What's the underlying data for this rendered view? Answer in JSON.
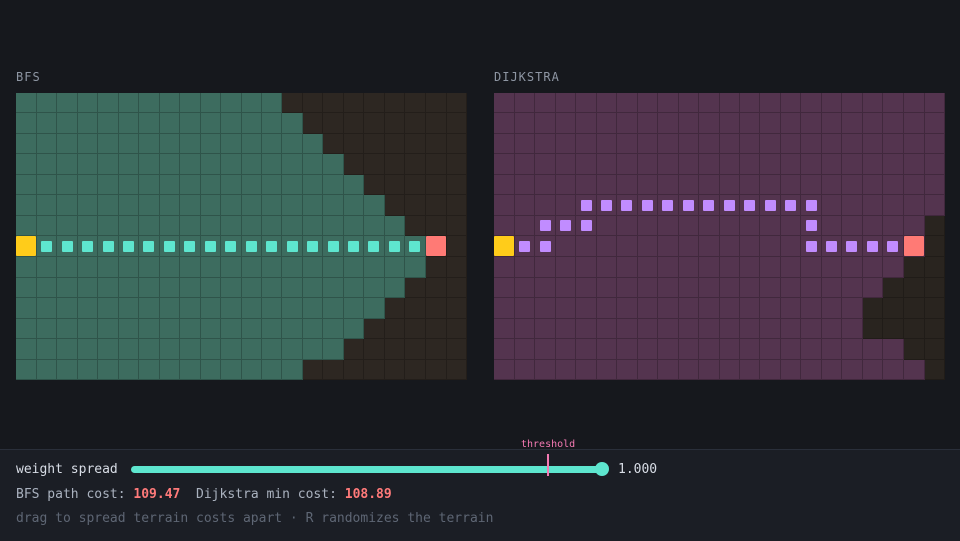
{
  "panels": {
    "left": {
      "title": "BFS"
    },
    "right": {
      "title": "DIJKSTRA"
    }
  },
  "grid": {
    "cols": 22,
    "rows": 14,
    "start": [
      0,
      7
    ],
    "goal": [
      20,
      7
    ]
  },
  "bfs": {
    "region_colors": {
      "explored": "#3d6c5f",
      "unexplored": "#2d2722"
    },
    "explored_end_col_by_row": [
      13,
      14,
      15,
      16,
      17,
      18,
      19,
      20,
      20,
      19,
      18,
      17,
      16,
      14
    ],
    "path": [
      [
        1,
        7
      ],
      [
        2,
        7
      ],
      [
        3,
        7
      ],
      [
        4,
        7
      ],
      [
        5,
        7
      ],
      [
        6,
        7
      ],
      [
        7,
        7
      ],
      [
        8,
        7
      ],
      [
        9,
        7
      ],
      [
        10,
        7
      ],
      [
        11,
        7
      ],
      [
        12,
        7
      ],
      [
        13,
        7
      ],
      [
        14,
        7
      ],
      [
        15,
        7
      ],
      [
        16,
        7
      ],
      [
        17,
        7
      ],
      [
        18,
        7
      ],
      [
        19,
        7
      ]
    ],
    "path_color": "#5ee6cf"
  },
  "dijkstra": {
    "region_colors": {
      "explored": "#54344f",
      "unexplored": "#29241f"
    },
    "unexplored_cells": [
      [
        21,
        6
      ],
      [
        21,
        7
      ],
      [
        20,
        8
      ],
      [
        21,
        8
      ],
      [
        19,
        9
      ],
      [
        20,
        9
      ],
      [
        21,
        9
      ],
      [
        18,
        10
      ],
      [
        19,
        10
      ],
      [
        20,
        10
      ],
      [
        21,
        10
      ],
      [
        18,
        11
      ],
      [
        19,
        11
      ],
      [
        20,
        11
      ],
      [
        21,
        11
      ],
      [
        20,
        12
      ],
      [
        21,
        12
      ],
      [
        21,
        13
      ]
    ],
    "path": [
      [
        1,
        7
      ],
      [
        2,
        7
      ],
      [
        2,
        6
      ],
      [
        3,
        6
      ],
      [
        4,
        6
      ],
      [
        4,
        5
      ],
      [
        5,
        5
      ],
      [
        6,
        5
      ],
      [
        7,
        5
      ],
      [
        8,
        5
      ],
      [
        9,
        5
      ],
      [
        10,
        5
      ],
      [
        11,
        5
      ],
      [
        12,
        5
      ],
      [
        13,
        5
      ],
      [
        14,
        5
      ],
      [
        15,
        5
      ],
      [
        15,
        6
      ],
      [
        15,
        7
      ],
      [
        16,
        7
      ],
      [
        17,
        7
      ],
      [
        18,
        7
      ],
      [
        19,
        7
      ]
    ],
    "path_color": "#c18cff"
  },
  "colors": {
    "start": "#ffcc1a",
    "goal": "#ff7a75"
  },
  "controls": {
    "slider_label": "weight spread",
    "slider_value": "1.000",
    "slider_level": 1.0,
    "threshold_label": "threshold",
    "threshold_level": 0.88,
    "bfs_cost_label": "BFS path cost:",
    "bfs_cost_value": "109.47",
    "dijkstra_cost_label": "Dijkstra min cost:",
    "dijkstra_cost_value": "108.89",
    "hint": "drag to spread terrain costs apart · R randomizes the terrain"
  }
}
